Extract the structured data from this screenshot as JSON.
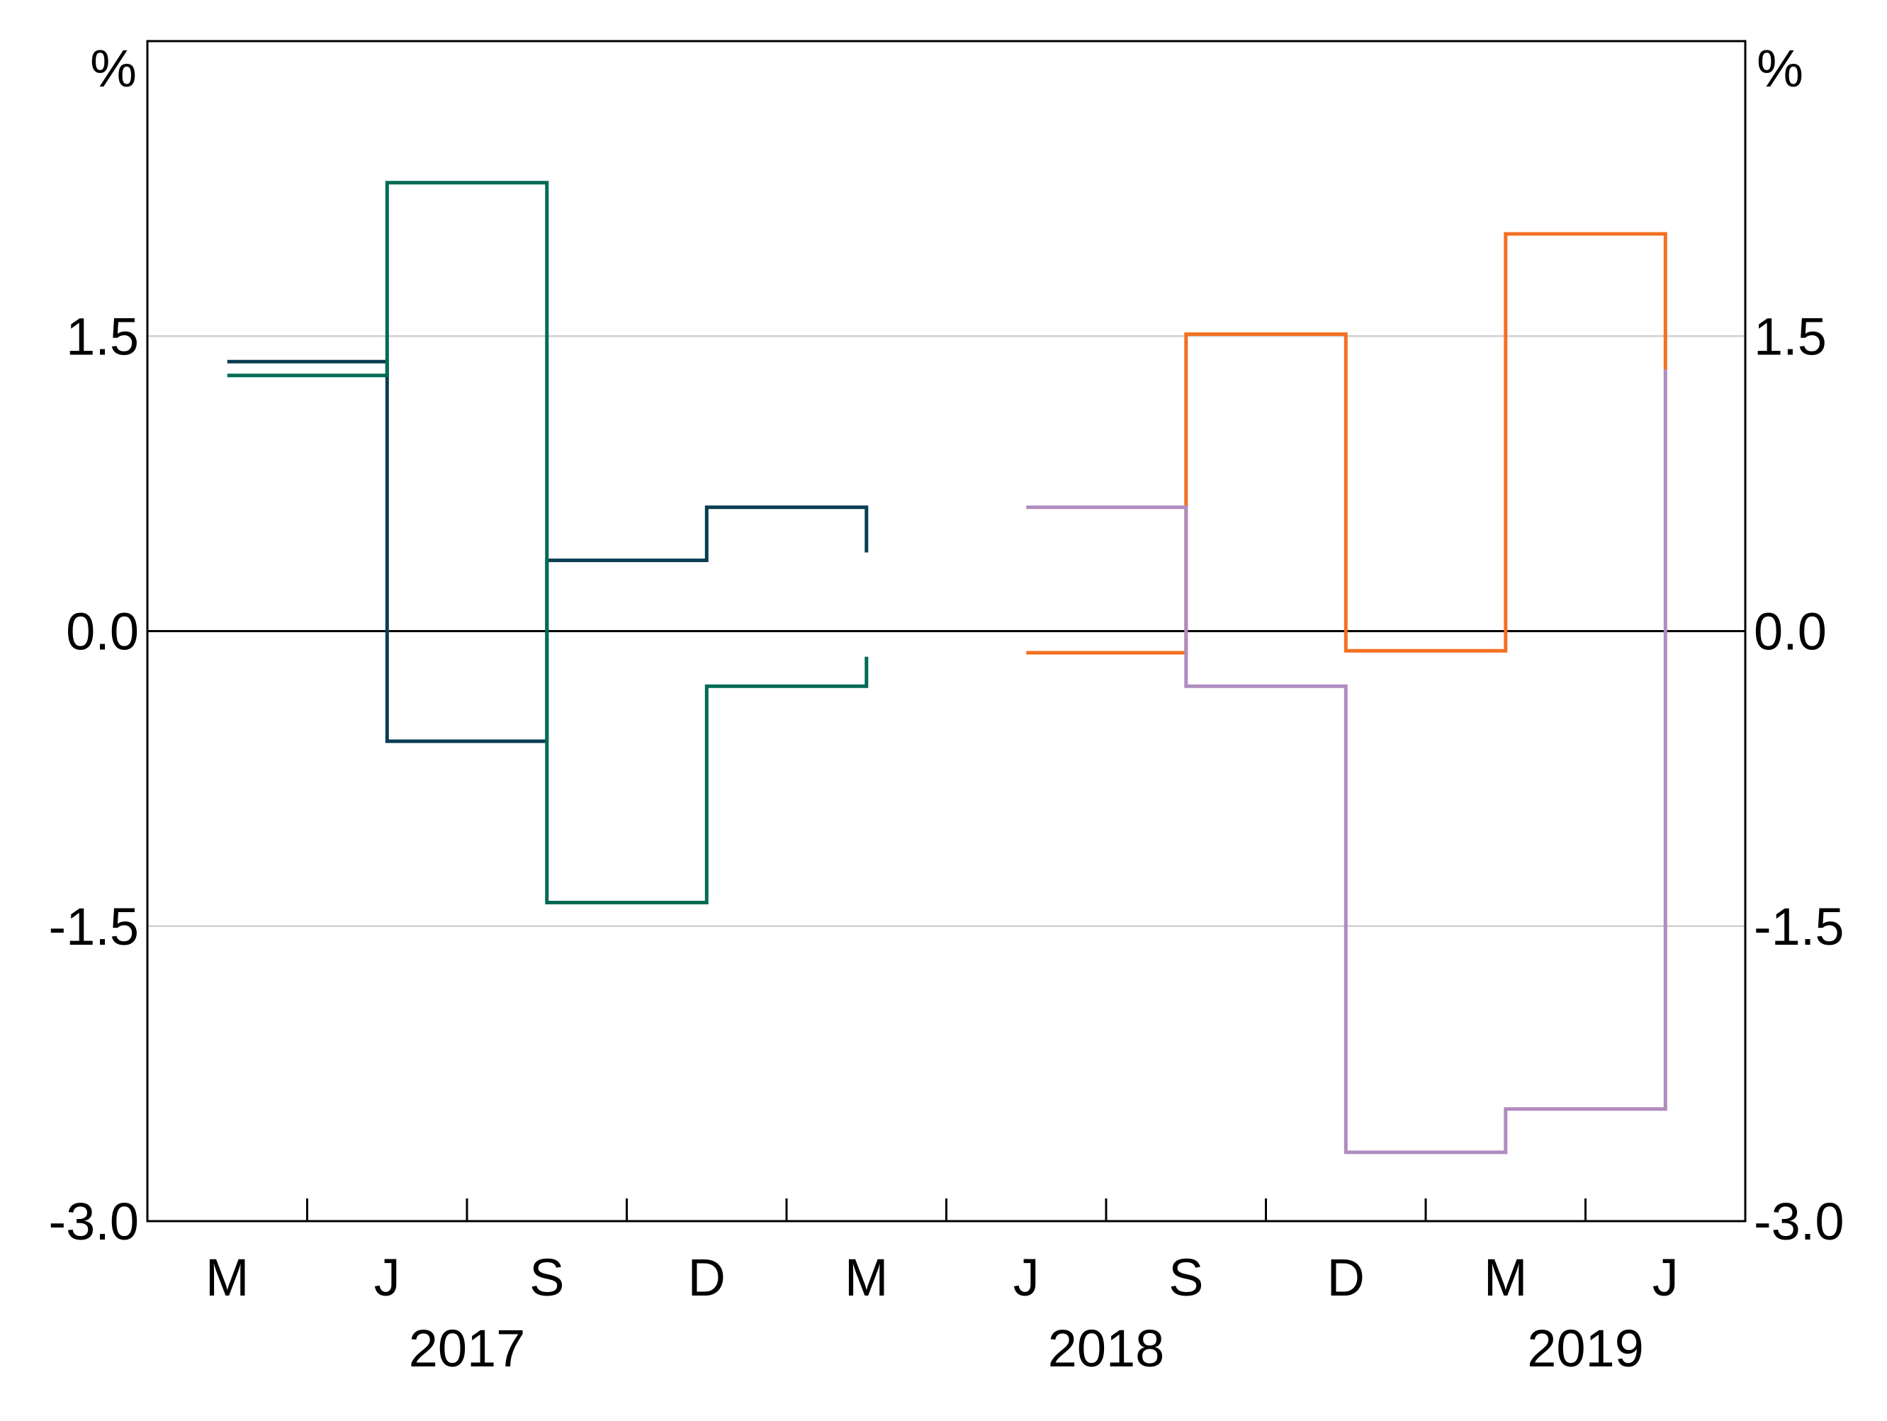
{
  "chart_data": {
    "type": "line",
    "step": true,
    "y_unit_left": "%",
    "y_unit_right": "%",
    "ylim": [
      -3.0,
      3.0
    ],
    "y_ticks": [
      "-3.0",
      "-1.5",
      "0.0",
      "1.5"
    ],
    "y_tick_values": [
      -3.0,
      -1.5,
      0.0,
      1.5
    ],
    "grid": true,
    "legend": "none",
    "x_quarters": [
      "Mar-2017",
      "Jun-2017",
      "Sep-2017",
      "Dec-2017",
      "Mar-2018",
      "Jun-2018",
      "Sep-2018",
      "Dec-2018",
      "Mar-2019",
      "Jun-2019"
    ],
    "x_tick_labels": [
      "M",
      "J",
      "S",
      "D",
      "M",
      "J",
      "S",
      "D",
      "M",
      "J"
    ],
    "x_year_labels": [
      "2017",
      "2018",
      "2019"
    ],
    "colors": {
      "series_navy": "#0a3d52",
      "series_green": "#006b55",
      "series_orange": "#f37021",
      "series_lilac": "#b08cc0",
      "grid": "#d0d0d0",
      "axis": "#000000"
    },
    "series": [
      {
        "color": "#0a3d52",
        "x": [
          "Mar-2017",
          "Jun-2017",
          "Sep-2017",
          "Dec-2017",
          "Mar-2018"
        ],
        "values": [
          1.37,
          -0.56,
          0.36,
          0.63,
          0.4
        ]
      },
      {
        "color": "#006b55",
        "x": [
          "Mar-2017",
          "Jun-2017",
          "Sep-2017",
          "Dec-2017",
          "Mar-2018"
        ],
        "values": [
          1.3,
          2.28,
          -1.38,
          -0.28,
          -0.13
        ]
      },
      {
        "color": "#f37021",
        "x": [
          "Jun-2018",
          "Sep-2018",
          "Dec-2018",
          "Mar-2019",
          "Jun-2019"
        ],
        "values": [
          -0.11,
          1.51,
          -0.1,
          2.02,
          1.33
        ]
      },
      {
        "color": "#b08cc0",
        "x": [
          "Jun-2018",
          "Sep-2018",
          "Dec-2018",
          "Mar-2019",
          "Jun-2019"
        ],
        "values": [
          0.63,
          -0.28,
          -2.65,
          -2.43,
          1.33
        ]
      }
    ]
  }
}
